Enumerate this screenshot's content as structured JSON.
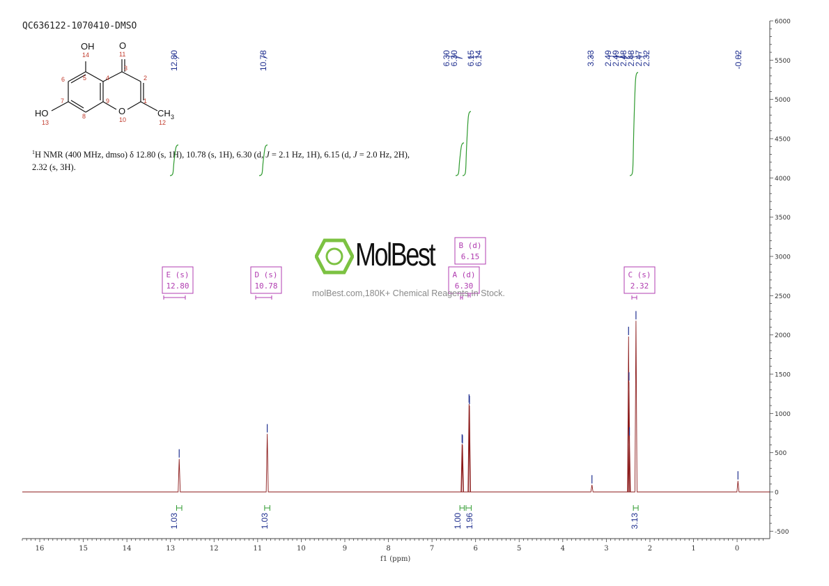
{
  "sample_id": "QC636122-1070410-DMSO",
  "description": {
    "sup": "1",
    "prefix": "H NMR (400 MHz, dmso) δ 12.80 (s, 1H), 10.78 (s, 1H), 6.30 (d, ",
    "j1_italic": "J",
    "j1_rest": " = 2.1 Hz, 1H), 6.15 (d, ",
    "j2_italic": "J",
    "j2_rest": " = 2.0 Hz, 2H), 2.32 (s, 3H)."
  },
  "molecule": {
    "labels": [
      "OH",
      "14",
      "O",
      "11",
      "6",
      "5",
      "4",
      "3",
      "2",
      "7",
      "9",
      "1",
      "HO",
      "13",
      "8",
      "O",
      "10",
      "CH",
      "3",
      "12"
    ]
  },
  "watermark": {
    "name": "MolBest",
    "tagline": "molBest.com,180K+ Chemical Reagents In Stock."
  },
  "colors": {
    "spectrum": "#8b1a1a",
    "peak_labels": "#1f2f8f",
    "integrals": "#2e9a2e",
    "multiplet_boxes": "#b03cb0",
    "axis": "#444444",
    "logo": "#7cc242"
  },
  "chart_data": {
    "type": "line",
    "xlabel": "f1 (ppm)",
    "x_axis_reversed": true,
    "xlim": [
      16.4,
      -0.75
    ],
    "ylim": [
      -600,
      6000
    ],
    "x_ticks": [
      "16",
      "15",
      "14",
      "13",
      "12",
      "11",
      "10",
      "9",
      "8",
      "7",
      "6",
      "5",
      "4",
      "3",
      "2",
      "1",
      "0"
    ],
    "y_ticks": [
      "6000",
      "5500",
      "5000",
      "4500",
      "4000",
      "3500",
      "3000",
      "2500",
      "2000",
      "1500",
      "1000",
      "500",
      "0",
      "-500"
    ],
    "peaks": [
      {
        "ppm": 12.8,
        "height": 420
      },
      {
        "ppm": 10.78,
        "height": 740
      },
      {
        "ppm": 6.31,
        "height": 610
      },
      {
        "ppm": 6.3,
        "height": 600
      },
      {
        "ppm": 6.15,
        "height": 1120
      },
      {
        "ppm": 6.14,
        "height": 1100
      },
      {
        "ppm": 3.33,
        "height": 90
      },
      {
        "ppm": 2.49,
        "height": 1980
      },
      {
        "ppm": 2.48,
        "height": 1400
      },
      {
        "ppm": 2.47,
        "height": 700
      },
      {
        "ppm": 2.32,
        "height": 2180
      },
      {
        "ppm": -0.02,
        "height": 140
      }
    ],
    "peak_labels": [
      "12.80",
      "10.78",
      "6.30",
      "6.30",
      "6.15",
      "6.14",
      "3.33",
      "2.49",
      "2.49",
      "2.48",
      "2.48",
      "2.47",
      "2.32",
      "-0.02"
    ],
    "integrals": [
      {
        "label": "1.03",
        "from": 12.86,
        "to": 12.74
      },
      {
        "label": "1.03",
        "from": 10.84,
        "to": 10.72
      },
      {
        "label": "1.00",
        "from": 6.36,
        "to": 6.26
      },
      {
        "label": "1.96",
        "from": 6.22,
        "to": 6.1
      },
      {
        "label": "3.13",
        "from": 2.38,
        "to": 2.27
      }
    ],
    "multiplets": [
      {
        "letter": "E",
        "type": "(s)",
        "shift": "12.80",
        "from": 13.0,
        "to": 12.5
      },
      {
        "letter": "D",
        "type": "(s)",
        "shift": "10.78",
        "from": 10.95,
        "to": 10.6
      },
      {
        "letter": "B",
        "type": "(d)",
        "shift": "6.15",
        "from": 6.2,
        "to": 6.1
      },
      {
        "letter": "A",
        "type": "(d)",
        "shift": "6.30",
        "from": 6.36,
        "to": 6.24
      },
      {
        "letter": "C",
        "type": "(s)",
        "shift": "2.32",
        "from": 2.37,
        "to": 2.27
      }
    ]
  }
}
